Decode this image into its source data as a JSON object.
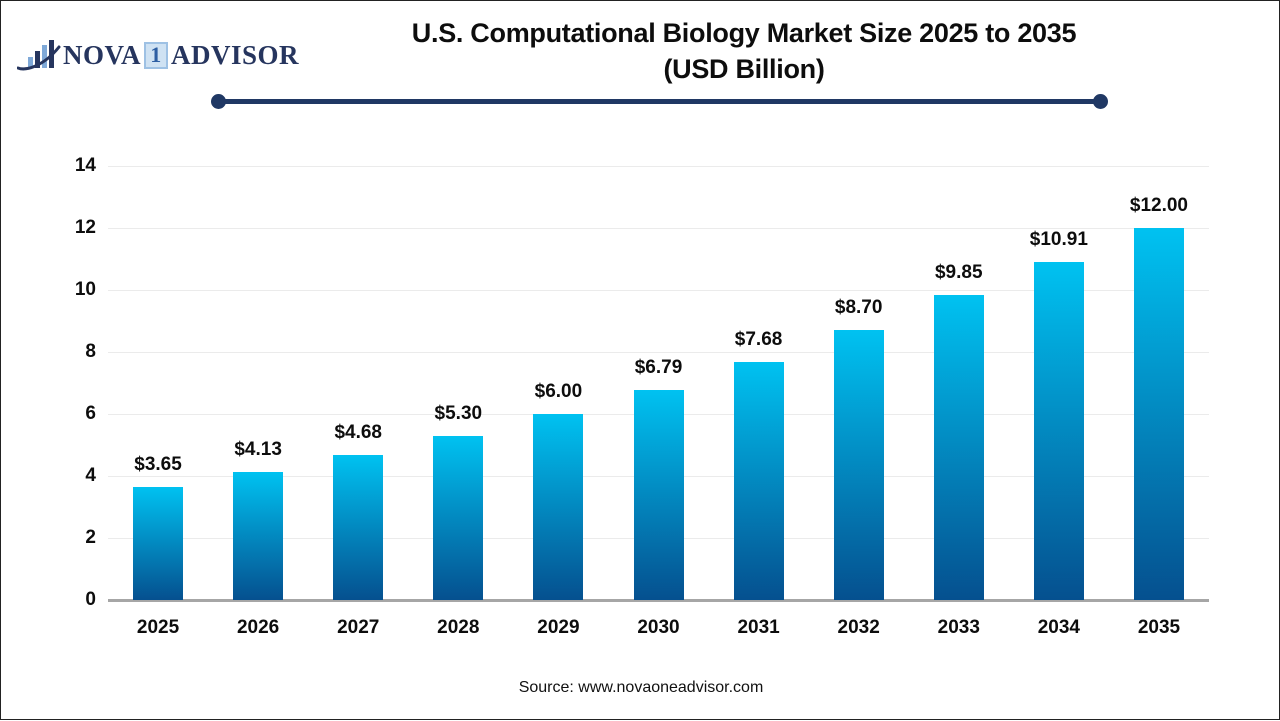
{
  "logo": {
    "brand_prefix": "NOVA",
    "brand_number": "1",
    "brand_suffix": "ADVISOR",
    "icon": "bar-chart-swoosh-icon"
  },
  "title": {
    "line1": "U.S. Computational Biology Market Size 2025 to 2035",
    "line2": "(USD Billion)"
  },
  "chart_data": {
    "type": "bar",
    "title": "U.S. Computational Biology Market Size 2025 to 2035 (USD Billion)",
    "categories": [
      "2025",
      "2026",
      "2027",
      "2028",
      "2029",
      "2030",
      "2031",
      "2032",
      "2033",
      "2034",
      "2035"
    ],
    "values": [
      3.65,
      4.13,
      4.68,
      5.3,
      6.0,
      6.79,
      7.68,
      8.7,
      9.85,
      10.91,
      12.0
    ],
    "value_labels": [
      "$3.65",
      "$4.13",
      "$4.68",
      "$5.30",
      "$6.00",
      "$6.79",
      "$7.68",
      "$8.70",
      "$9.85",
      "$10.91",
      "$12.00"
    ],
    "xlabel": "",
    "ylabel": "",
    "ylim": [
      0,
      14
    ],
    "ytick_step": 2,
    "ytick_labels": [
      "0",
      "2",
      "4",
      "6",
      "8",
      "10",
      "12",
      "14"
    ],
    "grid": true,
    "legend": false,
    "bar_gradient_top": "#00c2f1",
    "bar_gradient_bottom": "#05508f"
  },
  "source": {
    "text": "Source: www.novaoneadvisor.com"
  },
  "colors": {
    "accent_navy": "#203864",
    "grid_line": "#ebebeb",
    "axis_line": "#a6a6a6",
    "text": "#0d0d0d",
    "logo_navy": "#26355e",
    "logo_light_blue": "#7fa9d8"
  }
}
